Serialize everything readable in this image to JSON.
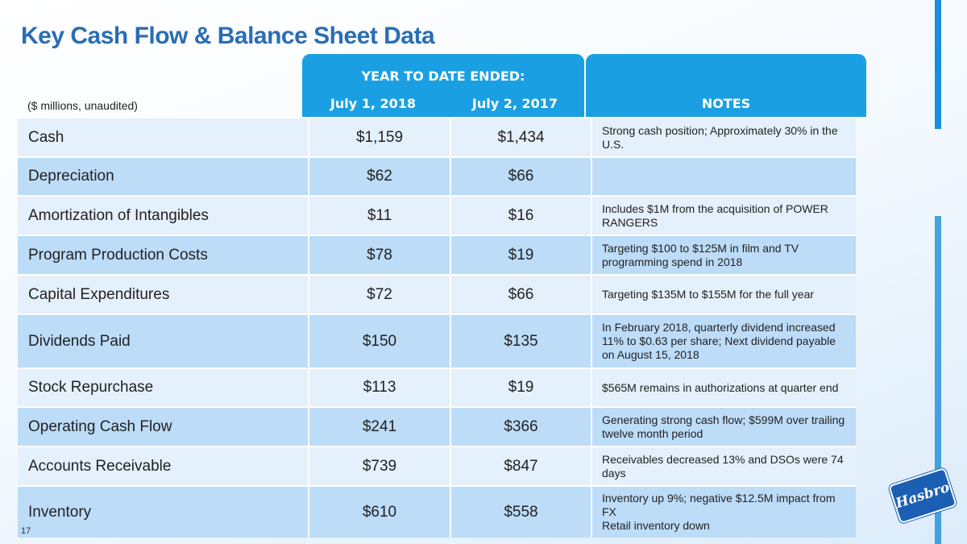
{
  "header": {
    "title": "Key Cash Flow & Balance Sheet Data",
    "units": "($ millions, unaudited)",
    "period_heading": "YEAR TO DATE ENDED:",
    "columns": [
      "July 1, 2018",
      "July 2, 2017"
    ],
    "notes_heading": "NOTES"
  },
  "table": {
    "rows": [
      {
        "label": "Cash",
        "values": [
          "$1,159",
          "$1,434"
        ],
        "notes": [
          "Strong cash position; Approximately 30% in the U.S."
        ]
      },
      {
        "label": "Depreciation",
        "values": [
          "$62",
          "$66"
        ],
        "notes": []
      },
      {
        "label": "Amortization of Intangibles",
        "values": [
          "$11",
          "$16"
        ],
        "notes": [
          "Includes $1M from the acquisition of POWER RANGERS"
        ]
      },
      {
        "label": "Program Production Costs",
        "values": [
          "$78",
          "$19"
        ],
        "notes": [
          "Targeting $100 to $125M in film and TV programming spend in 2018"
        ]
      },
      {
        "label": "Capital Expenditures",
        "values": [
          "$72",
          "$66"
        ],
        "notes": [
          "Targeting $135M to $155M for the full year"
        ]
      },
      {
        "label": "Dividends Paid",
        "values": [
          "$150",
          "$135"
        ],
        "notes": [
          "In February 2018, quarterly dividend increased 11% to $0.63 per share; Next dividend payable on August 15, 2018"
        ]
      },
      {
        "label": "Stock Repurchase",
        "values": [
          "$113",
          "$19"
        ],
        "notes": [
          "$565M remains in authorizations at quarter end"
        ]
      },
      {
        "label": "Operating Cash Flow",
        "values": [
          "$241",
          "$366"
        ],
        "notes": [
          "Generating strong cash flow; $599M over trailing twelve month period"
        ]
      },
      {
        "label": "Accounts Receivable",
        "values": [
          "$739",
          "$847"
        ],
        "notes": [
          "Receivables decreased 13% and DSOs were 74 days"
        ]
      },
      {
        "label": "Inventory",
        "values": [
          "$610",
          "$558"
        ],
        "notes": [
          "Inventory up 9%; negative $12.5M impact from FX",
          "Retail inventory down"
        ]
      }
    ]
  },
  "footer": {
    "page_number": "17",
    "logo": "Hasbro"
  }
}
